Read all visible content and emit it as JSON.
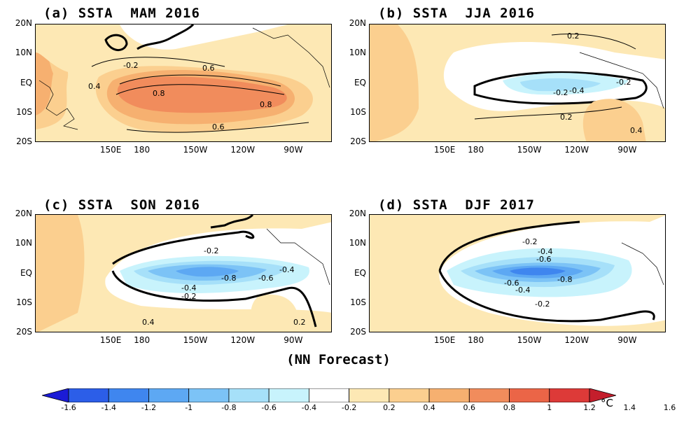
{
  "panels": [
    {
      "title": "(a) SSTA  MAM 2016"
    },
    {
      "title": "(b) SSTA  JJA 2016"
    },
    {
      "title": "(c) SSTA  SON 2016"
    },
    {
      "title": "(d) SSTA  DJF 2017"
    }
  ],
  "axes": {
    "y_ticks": [
      "20N",
      "10N",
      "EQ",
      "10S",
      "20S"
    ],
    "x_ticks": [
      "150E",
      "180",
      "150W",
      "120W",
      "90W"
    ]
  },
  "footer": "(NN Forecast)",
  "colorbar": {
    "tick_labels": [
      "-1.6",
      "-1.4",
      "-1.2",
      "-1",
      "-0.8",
      "-0.6",
      "-0.4",
      "-0.2",
      "0.2",
      "0.4",
      "0.6",
      "0.8",
      "1",
      "1.2",
      "1.4",
      "1.6"
    ],
    "unit": "°C",
    "colors": [
      "#1b1bd6",
      "#2c5ee8",
      "#3f86ef",
      "#5da8f3",
      "#7cc3f6",
      "#a6e0f9",
      "#c8f3fc",
      "#ffffff",
      "#fde8b4",
      "#fbcf8f",
      "#f6b070",
      "#f18c5c",
      "#eb6547",
      "#dd3a38",
      "#c41e2c"
    ]
  },
  "contour_labels": {
    "a": [
      "-0.2",
      "0.4",
      "0.6",
      "0.8",
      "0.8",
      "0.6"
    ],
    "b": [
      "0.2",
      "-0.2",
      "-0.2",
      "-0.4",
      "0.2",
      "0.4"
    ],
    "c": [
      "-0.2",
      "-0.4",
      "-0.8",
      "-0.6",
      "-0.4",
      "-0.2",
      "0.4",
      "0.2"
    ],
    "d": [
      "-0.2",
      "-0.4",
      "-0.6",
      "-0.8",
      "-0.6",
      "-0.4",
      "-0.2"
    ]
  }
}
